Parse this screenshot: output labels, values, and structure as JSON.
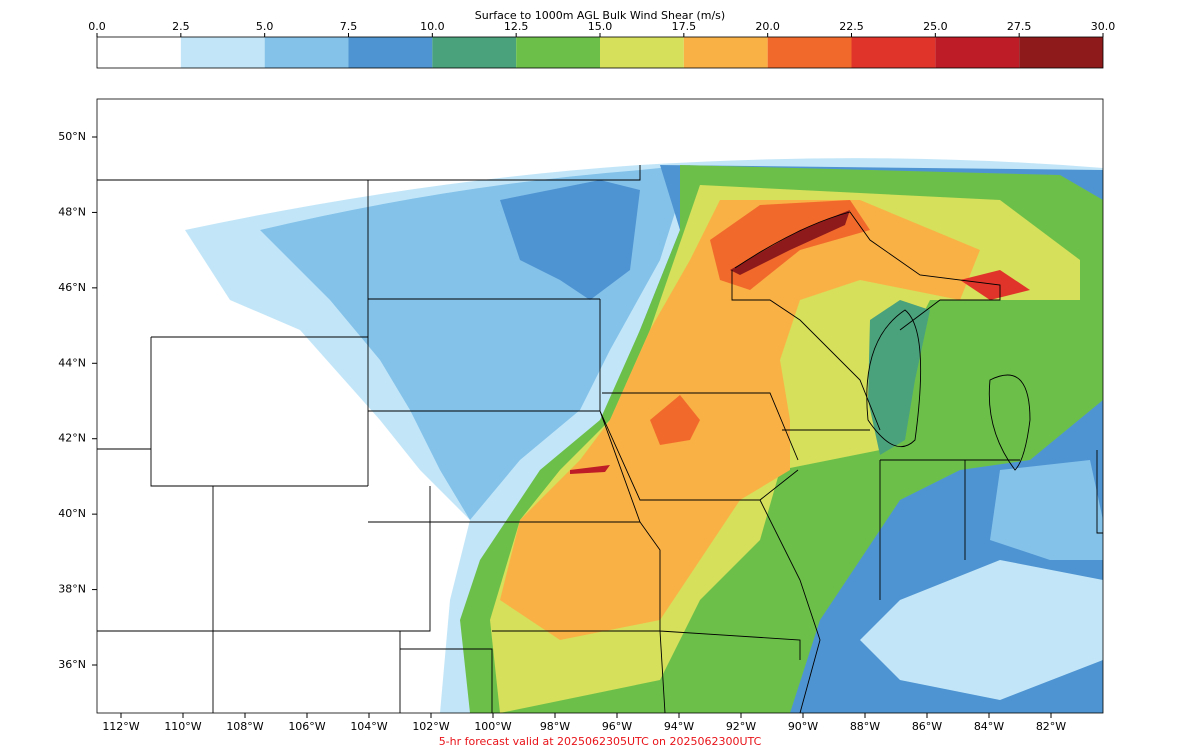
{
  "colorbar": {
    "title": "Surface to 1000m AGL Bulk Wind Shear (m/s)",
    "ticks": [
      {
        "value": 0,
        "label": "0.0"
      },
      {
        "value": 2.5,
        "label": "2.5"
      },
      {
        "value": 5,
        "label": "5.0"
      },
      {
        "value": 7.5,
        "label": "7.5"
      },
      {
        "value": 10,
        "label": "10.0"
      },
      {
        "value": 12.5,
        "label": "12.5"
      },
      {
        "value": 15,
        "label": "15.0"
      },
      {
        "value": 17.5,
        "label": "17.5"
      },
      {
        "value": 20,
        "label": "20.0"
      },
      {
        "value": 22.5,
        "label": "22.5"
      },
      {
        "value": 25,
        "label": "25.0"
      },
      {
        "value": 27.5,
        "label": "27.5"
      },
      {
        "value": 30,
        "label": "30.0"
      }
    ],
    "colors": [
      "#ffffff",
      "#c2e6f8",
      "#84c2ea",
      "#4f94d2",
      "#4aa27c",
      "#6cc04a",
      "#d6e05a",
      "#f9b146",
      "#f26a2b",
      "#e0342a",
      "#be1c26",
      "#8f1a1c"
    ]
  },
  "map": {
    "lat_ticks": [
      {
        "value": 50,
        "label": "50°N"
      },
      {
        "value": 48,
        "label": "48°N"
      },
      {
        "value": 46,
        "label": "46°N"
      },
      {
        "value": 44,
        "label": "44°N"
      },
      {
        "value": 42,
        "label": "42°N"
      },
      {
        "value": 40,
        "label": "40°N"
      },
      {
        "value": 38,
        "label": "38°N"
      },
      {
        "value": 36,
        "label": "36°N"
      }
    ],
    "lon_ticks": [
      {
        "value": -112,
        "label": "112°W"
      },
      {
        "value": -110,
        "label": "110°W"
      },
      {
        "value": -108,
        "label": "108°W"
      },
      {
        "value": -106,
        "label": "106°W"
      },
      {
        "value": -104,
        "label": "104°W"
      },
      {
        "value": -102,
        "label": "102°W"
      },
      {
        "value": -100,
        "label": "100°W"
      },
      {
        "value": -98,
        "label": "98°W"
      },
      {
        "value": -96,
        "label": "96°W"
      },
      {
        "value": -94,
        "label": "94°W"
      },
      {
        "value": -92,
        "label": "92°W"
      },
      {
        "value": -90,
        "label": "90°W"
      },
      {
        "value": -88,
        "label": "88°W"
      },
      {
        "value": -86,
        "label": "86°W"
      },
      {
        "value": -84,
        "label": "84°W"
      },
      {
        "value": -82,
        "label": "82°W"
      }
    ]
  },
  "footer": "5-hr forecast valid at 2025062305UTC on 2025062300UTC"
}
